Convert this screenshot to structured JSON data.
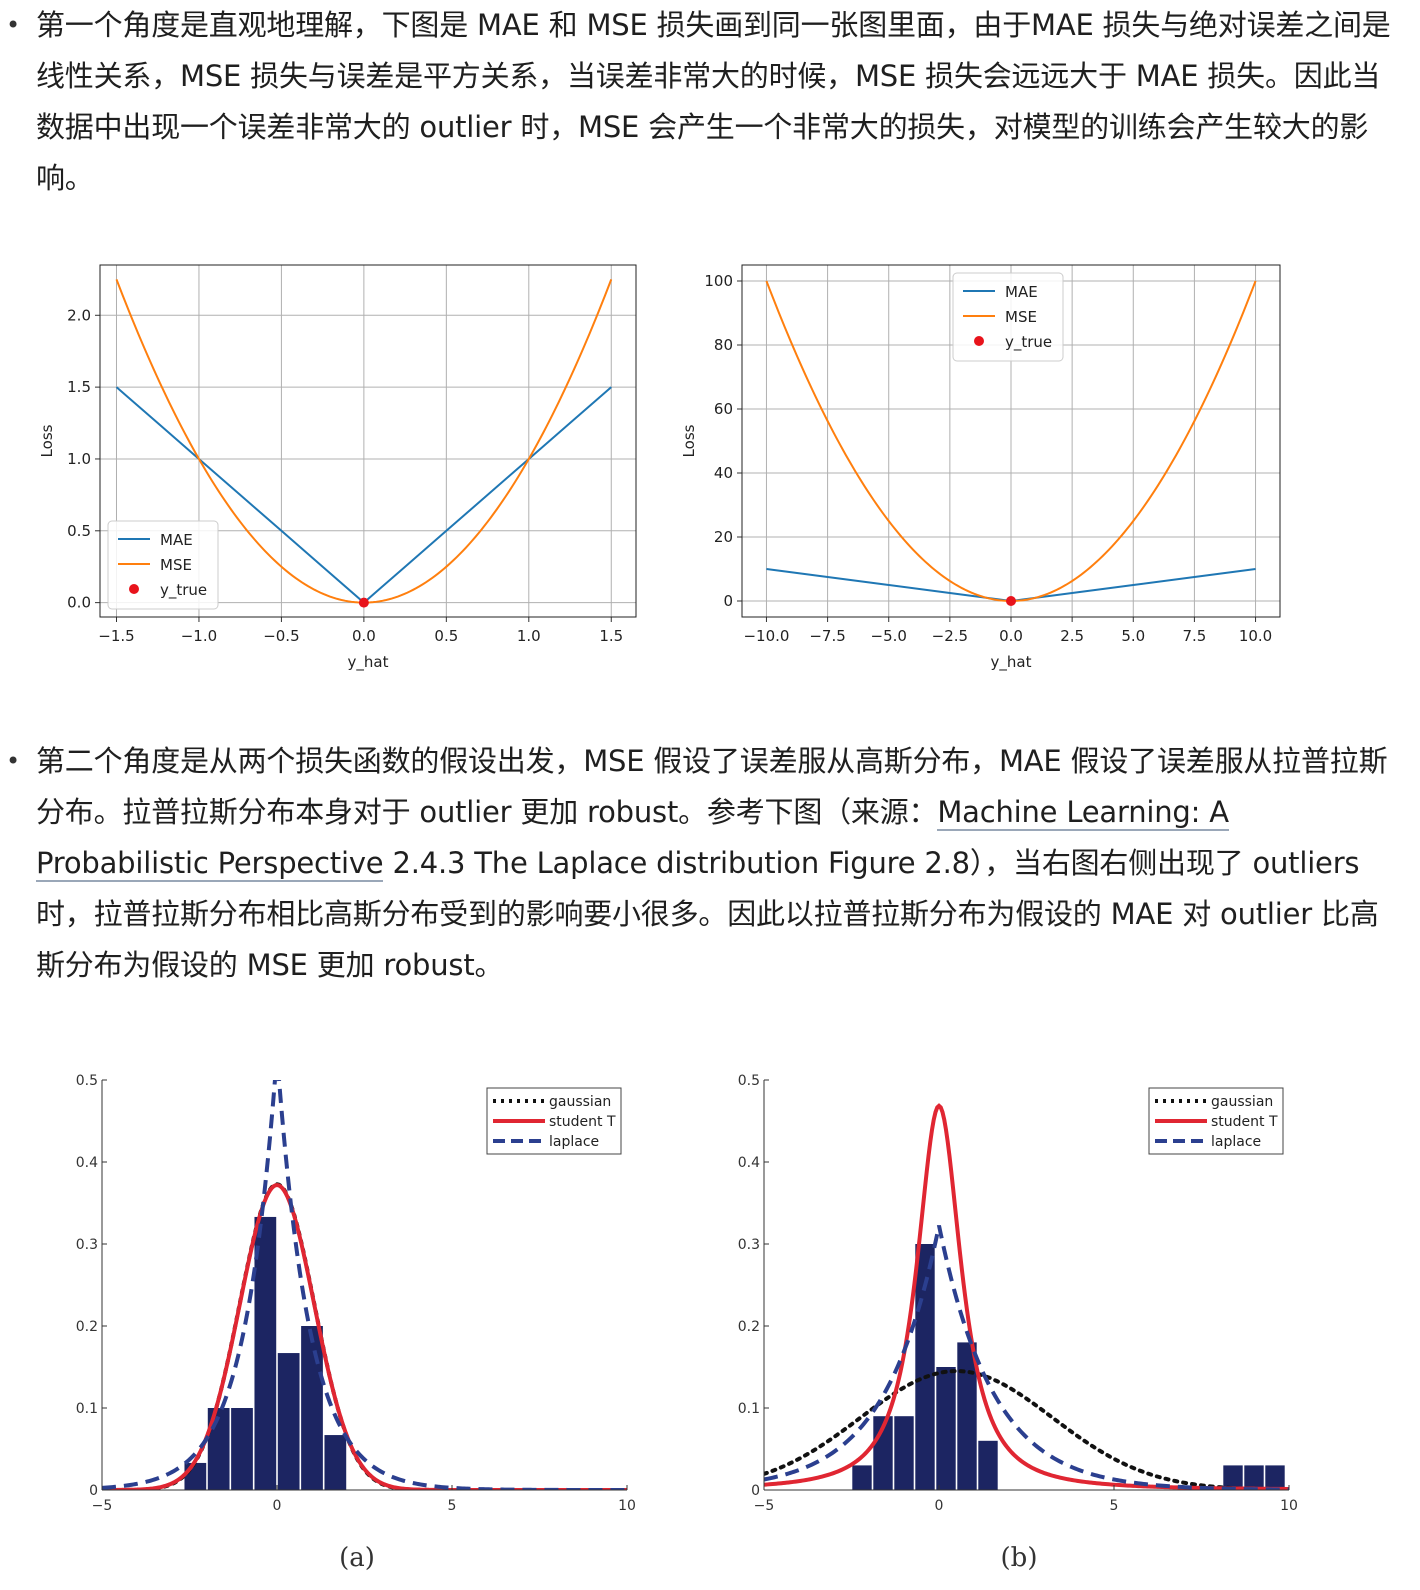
{
  "paragraphs": {
    "p1": "第一个角度是直观地理解，下图是 MAE 和 MSE 损失画到同一张图里面，由于MAE 损失与绝对误差之间是线性关系，MSE 损失与误差是平方关系，当误差非常大的时候，MSE 损失会远远大于 MAE 损失。因此当数据中出现一个误差非常大的 outlier 时，MSE 会产生一个非常大的损失，对模型的训练会产生较大的影响。",
    "p2_before": "第二个角度是从两个损失函数的假设出发，MSE 假设了误差服从高斯分布，MAE 假设了误差服从拉普拉斯分布。拉普拉斯分布本身对于 outlier 更加 robust。参考下图（来源：",
    "p2_link": "Machine Learning: A Probabilistic Perspective",
    "p2_after": " 2.4.3 The Laplace distribution Figure 2.8），当右图右侧出现了 outliers 时，拉普拉斯分布相比高斯分布受到的影响要小很多。因此以拉普拉斯分布为假设的 MAE 对 outlier 比高斯分布为假设的 MSE 更加 robust。"
  },
  "bullet_glyph": "•",
  "chart_data": [
    {
      "type": "line",
      "xlabel": "y_hat",
      "ylabel": "Loss",
      "xlim": [
        -1.6,
        1.65
      ],
      "ylim": [
        -0.1,
        2.35
      ],
      "xticks": [
        -1.5,
        -1.0,
        -0.5,
        0.0,
        0.5,
        1.0,
        1.5
      ],
      "xtick_labels": [
        "−1.5",
        "−1.0",
        "−0.5",
        "0.0",
        "0.5",
        "1.0",
        "1.5"
      ],
      "yticks": [
        0.0,
        0.5,
        1.0,
        1.5,
        2.0
      ],
      "ytick_labels": [
        "0.0",
        "0.5",
        "1.0",
        "1.5",
        "2.0"
      ],
      "grid": true,
      "legend": "lower-left",
      "x": [
        -1.5,
        -1.25,
        -1.0,
        -0.75,
        -0.5,
        -0.25,
        0.0,
        0.25,
        0.5,
        0.75,
        1.0,
        1.25,
        1.5
      ],
      "series": [
        {
          "name": "MAE",
          "color": "#1f77b4",
          "values": [
            1.5,
            1.25,
            1.0,
            0.75,
            0.5,
            0.25,
            0.0,
            0.25,
            0.5,
            0.75,
            1.0,
            1.25,
            1.5
          ]
        },
        {
          "name": "MSE",
          "color": "#ff7f0e",
          "values": [
            2.25,
            1.5625,
            1.0,
            0.5625,
            0.25,
            0.0625,
            0.0,
            0.0625,
            0.25,
            0.5625,
            1.0,
            1.5625,
            2.25
          ]
        }
      ],
      "points": {
        "name": "y_true",
        "color": "#e8131b",
        "x": [
          0.0
        ],
        "y": [
          0.0
        ]
      }
    },
    {
      "type": "line",
      "xlabel": "y_hat",
      "ylabel": "Loss",
      "xlim": [
        -11.0,
        11.0
      ],
      "ylim": [
        -5,
        105
      ],
      "xticks": [
        -10.0,
        -7.5,
        -5.0,
        -2.5,
        0.0,
        2.5,
        5.0,
        7.5,
        10.0
      ],
      "xtick_labels": [
        "−10.0",
        "−7.5",
        "−5.0",
        "−2.5",
        "0.0",
        "2.5",
        "5.0",
        "7.5",
        "10.0"
      ],
      "yticks": [
        0,
        20,
        40,
        60,
        80,
        100
      ],
      "ytick_labels": [
        "0",
        "20",
        "40",
        "60",
        "80",
        "100"
      ],
      "grid": true,
      "legend": "top-center",
      "x": [
        -10,
        -7.5,
        -5,
        -2.5,
        0,
        2.5,
        5,
        7.5,
        10
      ],
      "series": [
        {
          "name": "MAE",
          "color": "#1f77b4",
          "values": [
            10,
            7.5,
            5,
            2.5,
            0,
            2.5,
            5,
            7.5,
            10
          ]
        },
        {
          "name": "MSE",
          "color": "#ff7f0e",
          "values": [
            100,
            56.25,
            25,
            6.25,
            0,
            6.25,
            25,
            56.25,
            100
          ]
        }
      ],
      "points": {
        "name": "y_true",
        "color": "#e8131b",
        "x": [
          0.0
        ],
        "y": [
          0.0
        ]
      }
    },
    {
      "type": "bar",
      "caption": "(a)",
      "xlim": [
        -5,
        10
      ],
      "ylim": [
        0,
        0.5
      ],
      "xticks": [
        -5,
        0,
        5,
        10
      ],
      "xtick_labels": [
        "−5",
        "0",
        "5",
        "10"
      ],
      "yticks": [
        0,
        0.1,
        0.2,
        0.3,
        0.4,
        0.5
      ],
      "ytick_labels": [
        "0",
        "0.1",
        "0.2",
        "0.3",
        "0.4",
        "0.5"
      ],
      "grid": false,
      "legend": "top-right",
      "histogram": {
        "color": "#1c2562",
        "bin_width": 0.667,
        "centers": [
          -2.333,
          -1.667,
          -1.0,
          -0.333,
          0.333,
          1.0,
          1.667
        ],
        "values": [
          0.033,
          0.1,
          0.1,
          0.333,
          0.167,
          0.2,
          0.067
        ]
      },
      "series": [
        {
          "name": "gaussian",
          "color": "#111111",
          "style": "dotted",
          "dist": "gaussian",
          "mu": 0.0,
          "sigma": 1.07
        },
        {
          "name": "student T",
          "color": "#e02632",
          "style": "solid",
          "dist": "student",
          "mu": 0.0,
          "scale": 1.07,
          "nu": 100
        },
        {
          "name": "laplace",
          "color": "#2b3f8f",
          "style": "dashed",
          "dist": "laplace",
          "mu": 0.0,
          "b": 0.94
        }
      ]
    },
    {
      "type": "bar",
      "caption": "(b)",
      "xlim": [
        -5,
        10
      ],
      "ylim": [
        0,
        0.5
      ],
      "xticks": [
        -5,
        0,
        5,
        10
      ],
      "xtick_labels": [
        "−5",
        "0",
        "5",
        "10"
      ],
      "yticks": [
        0,
        0.1,
        0.2,
        0.3,
        0.4,
        0.5
      ],
      "ytick_labels": [
        "0",
        "0.1",
        "0.2",
        "0.3",
        "0.4",
        "0.5"
      ],
      "grid": false,
      "legend": "top-right",
      "histogram": {
        "color": "#1c2562",
        "bin_width": 0.6,
        "centers": [
          -2.2,
          -1.6,
          -1.0,
          -0.4,
          0.2,
          0.8,
          1.4,
          8.4,
          9.0,
          9.6
        ],
        "values": [
          0.03,
          0.09,
          0.09,
          0.3,
          0.15,
          0.18,
          0.06,
          0.03,
          0.03,
          0.03
        ]
      },
      "series": [
        {
          "name": "gaussian",
          "color": "#111111",
          "style": "dotted",
          "dist": "gaussian",
          "mu": 0.5,
          "sigma": 2.75
        },
        {
          "name": "student T",
          "color": "#e02632",
          "style": "solid",
          "dist": "student",
          "mu": 0.0,
          "scale": 0.72,
          "nu": 1.4
        },
        {
          "name": "laplace",
          "color": "#2b3f8f",
          "style": "dashed",
          "dist": "laplace",
          "mu": 0.0,
          "b": 1.55
        }
      ]
    }
  ]
}
